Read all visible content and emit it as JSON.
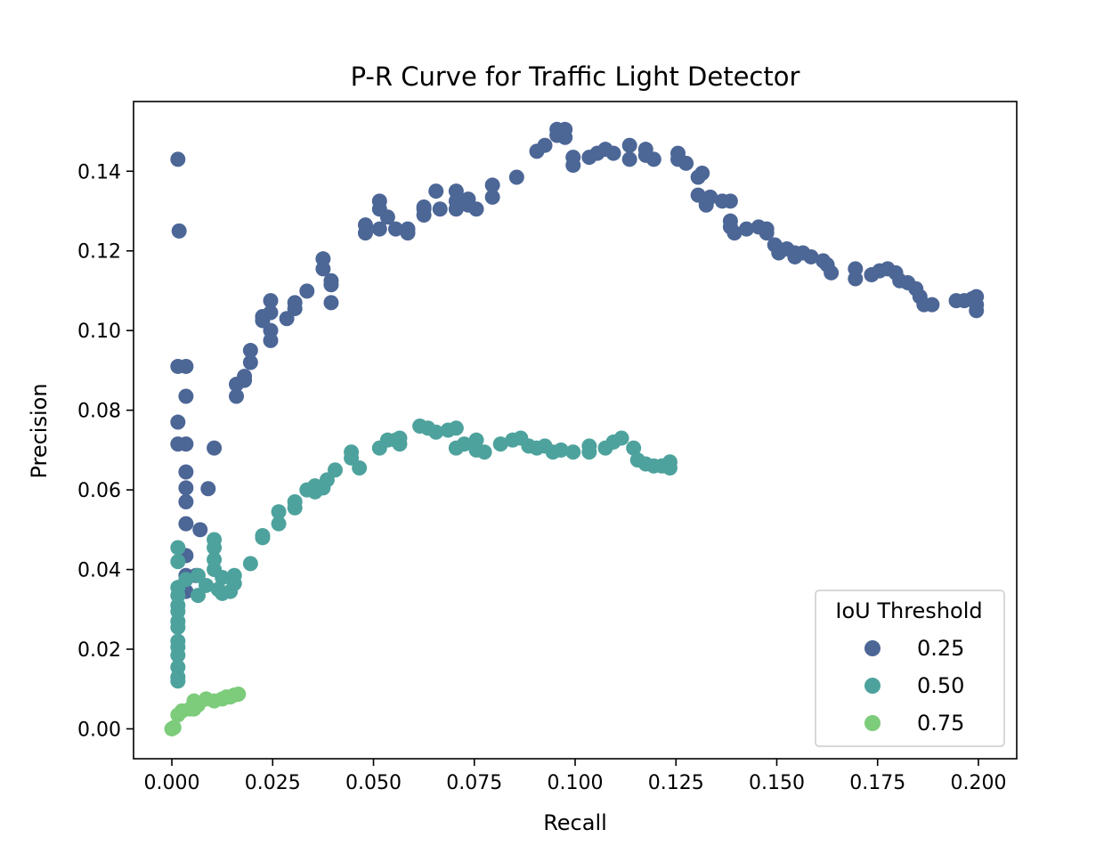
{
  "chart_data": {
    "type": "scatter",
    "title": "P-R Curve for Traffic Light Detector",
    "xlabel": "Recall",
    "ylabel": "Precision",
    "xlim": [
      -0.0095,
      0.2095
    ],
    "ylim": [
      -0.0075,
      0.1575
    ],
    "xticks": [
      0.0,
      0.025,
      0.05,
      0.075,
      0.1,
      0.125,
      0.15,
      0.175,
      0.2
    ],
    "xtick_labels": [
      "0.000",
      "0.025",
      "0.050",
      "0.075",
      "0.100",
      "0.125",
      "0.150",
      "0.175",
      "0.200"
    ],
    "yticks": [
      0.0,
      0.02,
      0.04,
      0.06,
      0.08,
      0.1,
      0.12,
      0.14
    ],
    "ytick_labels": [
      "0.00",
      "0.02",
      "0.04",
      "0.06",
      "0.08",
      "0.10",
      "0.12",
      "0.14"
    ],
    "grid": false,
    "legend": {
      "title": "IoU Threshold",
      "position": "lower-right"
    },
    "series": [
      {
        "name": "0.25",
        "color": "#4c6696",
        "points": [
          [
            0.0015,
            0.143
          ],
          [
            0.0018,
            0.125
          ],
          [
            0.0015,
            0.091
          ],
          [
            0.0035,
            0.091
          ],
          [
            0.0015,
            0.077
          ],
          [
            0.0015,
            0.0715
          ],
          [
            0.0035,
            0.0715
          ],
          [
            0.0035,
            0.0835
          ],
          [
            0.0035,
            0.0645
          ],
          [
            0.0035,
            0.0605
          ],
          [
            0.0035,
            0.057
          ],
          [
            0.0035,
            0.0515
          ],
          [
            0.0035,
            0.0435
          ],
          [
            0.0035,
            0.0385
          ],
          [
            0.0035,
            0.0345
          ],
          [
            0.006,
            0.0385
          ],
          [
            0.007,
            0.05
          ],
          [
            0.009,
            0.0603
          ],
          [
            0.0105,
            0.0705
          ],
          [
            0.016,
            0.0835
          ],
          [
            0.016,
            0.0865
          ],
          [
            0.018,
            0.0885
          ],
          [
            0.018,
            0.0875
          ],
          [
            0.0195,
            0.092
          ],
          [
            0.0195,
            0.095
          ],
          [
            0.0225,
            0.1025
          ],
          [
            0.0225,
            0.1035
          ],
          [
            0.0245,
            0.1075
          ],
          [
            0.0245,
            0.1045
          ],
          [
            0.0245,
            0.1
          ],
          [
            0.0245,
            0.0975
          ],
          [
            0.0285,
            0.103
          ],
          [
            0.0305,
            0.1055
          ],
          [
            0.0305,
            0.107
          ],
          [
            0.0335,
            0.1099
          ],
          [
            0.0375,
            0.118
          ],
          [
            0.0375,
            0.1155
          ],
          [
            0.0395,
            0.1115
          ],
          [
            0.0395,
            0.107
          ],
          [
            0.0395,
            0.1125
          ],
          [
            0.048,
            0.1245
          ],
          [
            0.048,
            0.1265
          ],
          [
            0.0515,
            0.1255
          ],
          [
            0.0515,
            0.1305
          ],
          [
            0.0515,
            0.1325
          ],
          [
            0.0535,
            0.1285
          ],
          [
            0.0555,
            0.1255
          ],
          [
            0.0585,
            0.1255
          ],
          [
            0.0585,
            0.1245
          ],
          [
            0.0625,
            0.129
          ],
          [
            0.0625,
            0.1305
          ],
          [
            0.0625,
            0.131
          ],
          [
            0.0655,
            0.135
          ],
          [
            0.0665,
            0.1305
          ],
          [
            0.0705,
            0.1305
          ],
          [
            0.0705,
            0.135
          ],
          [
            0.0705,
            0.1325
          ],
          [
            0.0735,
            0.1315
          ],
          [
            0.0755,
            0.1305
          ],
          [
            0.0735,
            0.133
          ],
          [
            0.0795,
            0.1365
          ],
          [
            0.0795,
            0.1335
          ],
          [
            0.0855,
            0.1385
          ],
          [
            0.0905,
            0.145
          ],
          [
            0.0925,
            0.1465
          ],
          [
            0.0955,
            0.1505
          ],
          [
            0.0955,
            0.149
          ],
          [
            0.0975,
            0.1485
          ],
          [
            0.0975,
            0.1505
          ],
          [
            0.0995,
            0.1415
          ],
          [
            0.0995,
            0.1435
          ],
          [
            0.1035,
            0.1435
          ],
          [
            0.1055,
            0.1445
          ],
          [
            0.1075,
            0.1455
          ],
          [
            0.1095,
            0.1445
          ],
          [
            0.1135,
            0.1465
          ],
          [
            0.1135,
            0.143
          ],
          [
            0.1175,
            0.1455
          ],
          [
            0.1175,
            0.144
          ],
          [
            0.1195,
            0.143
          ],
          [
            0.1255,
            0.1445
          ],
          [
            0.1255,
            0.143
          ],
          [
            0.1275,
            0.142
          ],
          [
            0.1305,
            0.1385
          ],
          [
            0.1305,
            0.134
          ],
          [
            0.1315,
            0.1395
          ],
          [
            0.1325,
            0.1315
          ],
          [
            0.1335,
            0.1335
          ],
          [
            0.1365,
            0.1325
          ],
          [
            0.1385,
            0.1325
          ],
          [
            0.1385,
            0.1275
          ],
          [
            0.1385,
            0.126
          ],
          [
            0.1395,
            0.1245
          ],
          [
            0.1425,
            0.1255
          ],
          [
            0.1455,
            0.126
          ],
          [
            0.1475,
            0.1245
          ],
          [
            0.1475,
            0.1255
          ],
          [
            0.1495,
            0.1215
          ],
          [
            0.1505,
            0.1195
          ],
          [
            0.1525,
            0.1205
          ],
          [
            0.1545,
            0.1195
          ],
          [
            0.1545,
            0.1185
          ],
          [
            0.1565,
            0.1195
          ],
          [
            0.1585,
            0.1185
          ],
          [
            0.1615,
            0.1175
          ],
          [
            0.1625,
            0.1165
          ],
          [
            0.1635,
            0.1145
          ],
          [
            0.1695,
            0.1155
          ],
          [
            0.1695,
            0.113
          ],
          [
            0.1735,
            0.114
          ],
          [
            0.1755,
            0.115
          ],
          [
            0.1775,
            0.1155
          ],
          [
            0.1795,
            0.1145
          ],
          [
            0.1805,
            0.1125
          ],
          [
            0.1825,
            0.112
          ],
          [
            0.1845,
            0.1105
          ],
          [
            0.1855,
            0.1085
          ],
          [
            0.1865,
            0.1065
          ],
          [
            0.1885,
            0.1065
          ],
          [
            0.1945,
            0.1075
          ],
          [
            0.1965,
            0.1075
          ],
          [
            0.1985,
            0.108
          ],
          [
            0.1995,
            0.1085
          ],
          [
            0.1995,
            0.1065
          ],
          [
            0.1995,
            0.105
          ]
        ]
      },
      {
        "name": "0.50",
        "color": "#4ea29d",
        "points": [
          [
            0.0015,
            0.0455
          ],
          [
            0.0015,
            0.042
          ],
          [
            0.0015,
            0.0355
          ],
          [
            0.0015,
            0.0335
          ],
          [
            0.0015,
            0.031
          ],
          [
            0.0015,
            0.0295
          ],
          [
            0.0015,
            0.027
          ],
          [
            0.0015,
            0.0255
          ],
          [
            0.0015,
            0.022
          ],
          [
            0.0015,
            0.0205
          ],
          [
            0.0015,
            0.0185
          ],
          [
            0.0015,
            0.0155
          ],
          [
            0.0015,
            0.013
          ],
          [
            0.0015,
            0.012
          ],
          [
            0.0035,
            0.0375
          ],
          [
            0.0065,
            0.0385
          ],
          [
            0.0065,
            0.0335
          ],
          [
            0.0085,
            0.036
          ],
          [
            0.0105,
            0.0475
          ],
          [
            0.0105,
            0.0455
          ],
          [
            0.0105,
            0.0425
          ],
          [
            0.0105,
            0.04
          ],
          [
            0.0115,
            0.035
          ],
          [
            0.0125,
            0.034
          ],
          [
            0.0125,
            0.038
          ],
          [
            0.0145,
            0.0345
          ],
          [
            0.0155,
            0.0365
          ],
          [
            0.0155,
            0.0385
          ],
          [
            0.0195,
            0.0415
          ],
          [
            0.0225,
            0.0485
          ],
          [
            0.0225,
            0.048
          ],
          [
            0.0265,
            0.0545
          ],
          [
            0.0265,
            0.0515
          ],
          [
            0.0305,
            0.057
          ],
          [
            0.0305,
            0.0555
          ],
          [
            0.0335,
            0.06
          ],
          [
            0.0355,
            0.061
          ],
          [
            0.0355,
            0.0595
          ],
          [
            0.0375,
            0.0605
          ],
          [
            0.0385,
            0.0625
          ],
          [
            0.0405,
            0.065
          ],
          [
            0.0445,
            0.0695
          ],
          [
            0.0445,
            0.068
          ],
          [
            0.0465,
            0.0655
          ],
          [
            0.0515,
            0.0705
          ],
          [
            0.0535,
            0.0725
          ],
          [
            0.0555,
            0.0725
          ],
          [
            0.0565,
            0.073
          ],
          [
            0.0565,
            0.0715
          ],
          [
            0.0615,
            0.076
          ],
          [
            0.0635,
            0.0755
          ],
          [
            0.0655,
            0.0745
          ],
          [
            0.0685,
            0.075
          ],
          [
            0.0705,
            0.0755
          ],
          [
            0.0705,
            0.0705
          ],
          [
            0.0725,
            0.0715
          ],
          [
            0.0755,
            0.0725
          ],
          [
            0.0755,
            0.07
          ],
          [
            0.0775,
            0.0695
          ],
          [
            0.0815,
            0.0715
          ],
          [
            0.0845,
            0.0725
          ],
          [
            0.0865,
            0.073
          ],
          [
            0.0885,
            0.071
          ],
          [
            0.0905,
            0.0705
          ],
          [
            0.0925,
            0.071
          ],
          [
            0.0945,
            0.0695
          ],
          [
            0.0965,
            0.07
          ],
          [
            0.0995,
            0.0695
          ],
          [
            0.1035,
            0.071
          ],
          [
            0.1035,
            0.0695
          ],
          [
            0.1075,
            0.0705
          ],
          [
            0.1095,
            0.072
          ],
          [
            0.1115,
            0.073
          ],
          [
            0.1145,
            0.0705
          ],
          [
            0.1155,
            0.0675
          ],
          [
            0.1175,
            0.0665
          ],
          [
            0.1195,
            0.066
          ],
          [
            0.1215,
            0.066
          ],
          [
            0.1235,
            0.067
          ],
          [
            0.1235,
            0.0655
          ]
        ]
      },
      {
        "name": "0.75",
        "color": "#7ccc7b",
        "points": [
          [
            0.0,
            0.0
          ],
          [
            0.0005,
            0.0003
          ],
          [
            0.0015,
            0.0035
          ],
          [
            0.0025,
            0.0045
          ],
          [
            0.0045,
            0.005
          ],
          [
            0.0055,
            0.007
          ],
          [
            0.0055,
            0.005
          ],
          [
            0.0065,
            0.006
          ],
          [
            0.0085,
            0.0075
          ],
          [
            0.0105,
            0.007
          ],
          [
            0.0125,
            0.0075
          ],
          [
            0.0135,
            0.008
          ],
          [
            0.0145,
            0.008
          ],
          [
            0.0155,
            0.0085
          ],
          [
            0.0165,
            0.0087
          ]
        ]
      }
    ]
  }
}
